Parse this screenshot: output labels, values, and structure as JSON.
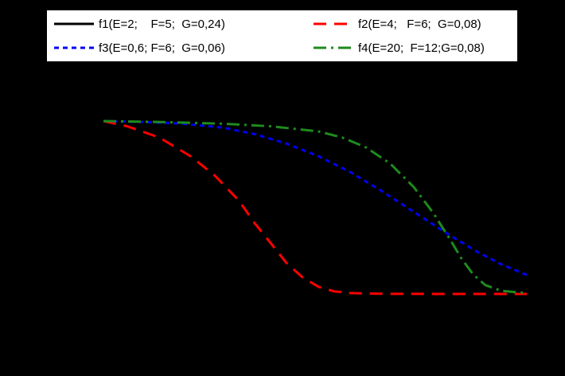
{
  "background_color": "#000000",
  "legend": {
    "background_color": "#FFFFFF",
    "border_color": "#000000",
    "position": "top"
  },
  "chart_data": {
    "type": "line",
    "title": "",
    "xlabel": "",
    "ylabel": "",
    "axis_labels_visible": false,
    "grid": false,
    "x_range": [
      0,
      1
    ],
    "y_range": [
      0,
      1
    ],
    "legend_position": "top",
    "series": [
      {
        "name": "f1",
        "label": "f1(E=2;    F=5;  G=0,24)",
        "color": "#000000",
        "style": "solid",
        "curve_visible": false,
        "points": []
      },
      {
        "name": "f2",
        "label": "f2(E=4;   F=6;  G=0,08)",
        "color": "#FF0000",
        "style": "long-dash",
        "curve_visible": true,
        "points": [
          [
            0.0,
            1.0
          ],
          [
            0.056,
            0.97
          ],
          [
            0.132,
            0.905
          ],
          [
            0.207,
            0.795
          ],
          [
            0.263,
            0.685
          ],
          [
            0.32,
            0.54
          ],
          [
            0.357,
            0.41
          ],
          [
            0.395,
            0.295
          ],
          [
            0.432,
            0.18
          ],
          [
            0.47,
            0.097
          ],
          [
            0.508,
            0.041
          ],
          [
            0.545,
            0.015
          ],
          [
            0.583,
            0.005
          ],
          [
            0.658,
            0.001
          ],
          [
            0.808,
            0.0
          ],
          [
            1.0,
            0.0
          ]
        ]
      },
      {
        "name": "f3",
        "label": "f3(E=0,6; F=6;  G=0,06)",
        "color": "#0000EE",
        "style": "short-dash",
        "curve_visible": true,
        "points": [
          [
            0.0,
            1.0
          ],
          [
            0.094,
            0.995
          ],
          [
            0.188,
            0.985
          ],
          [
            0.282,
            0.962
          ],
          [
            0.357,
            0.925
          ],
          [
            0.432,
            0.87
          ],
          [
            0.508,
            0.797
          ],
          [
            0.583,
            0.705
          ],
          [
            0.658,
            0.594
          ],
          [
            0.733,
            0.475
          ],
          [
            0.808,
            0.355
          ],
          [
            0.883,
            0.244
          ],
          [
            0.94,
            0.171
          ],
          [
            1.0,
            0.11
          ]
        ]
      },
      {
        "name": "f4",
        "label": "f4(E=20;  F=12;G=0,08)",
        "color": "#1E8B1E",
        "style": "dash-dot",
        "curve_visible": true,
        "points": [
          [
            0.0,
            1.0
          ],
          [
            0.132,
            0.995
          ],
          [
            0.282,
            0.985
          ],
          [
            0.395,
            0.97
          ],
          [
            0.508,
            0.94
          ],
          [
            0.564,
            0.905
          ],
          [
            0.62,
            0.848
          ],
          [
            0.677,
            0.755
          ],
          [
            0.733,
            0.618
          ],
          [
            0.78,
            0.465
          ],
          [
            0.818,
            0.318
          ],
          [
            0.846,
            0.203
          ],
          [
            0.874,
            0.111
          ],
          [
            0.902,
            0.051
          ],
          [
            0.94,
            0.018
          ],
          [
            1.0,
            0.005
          ]
        ]
      }
    ]
  }
}
